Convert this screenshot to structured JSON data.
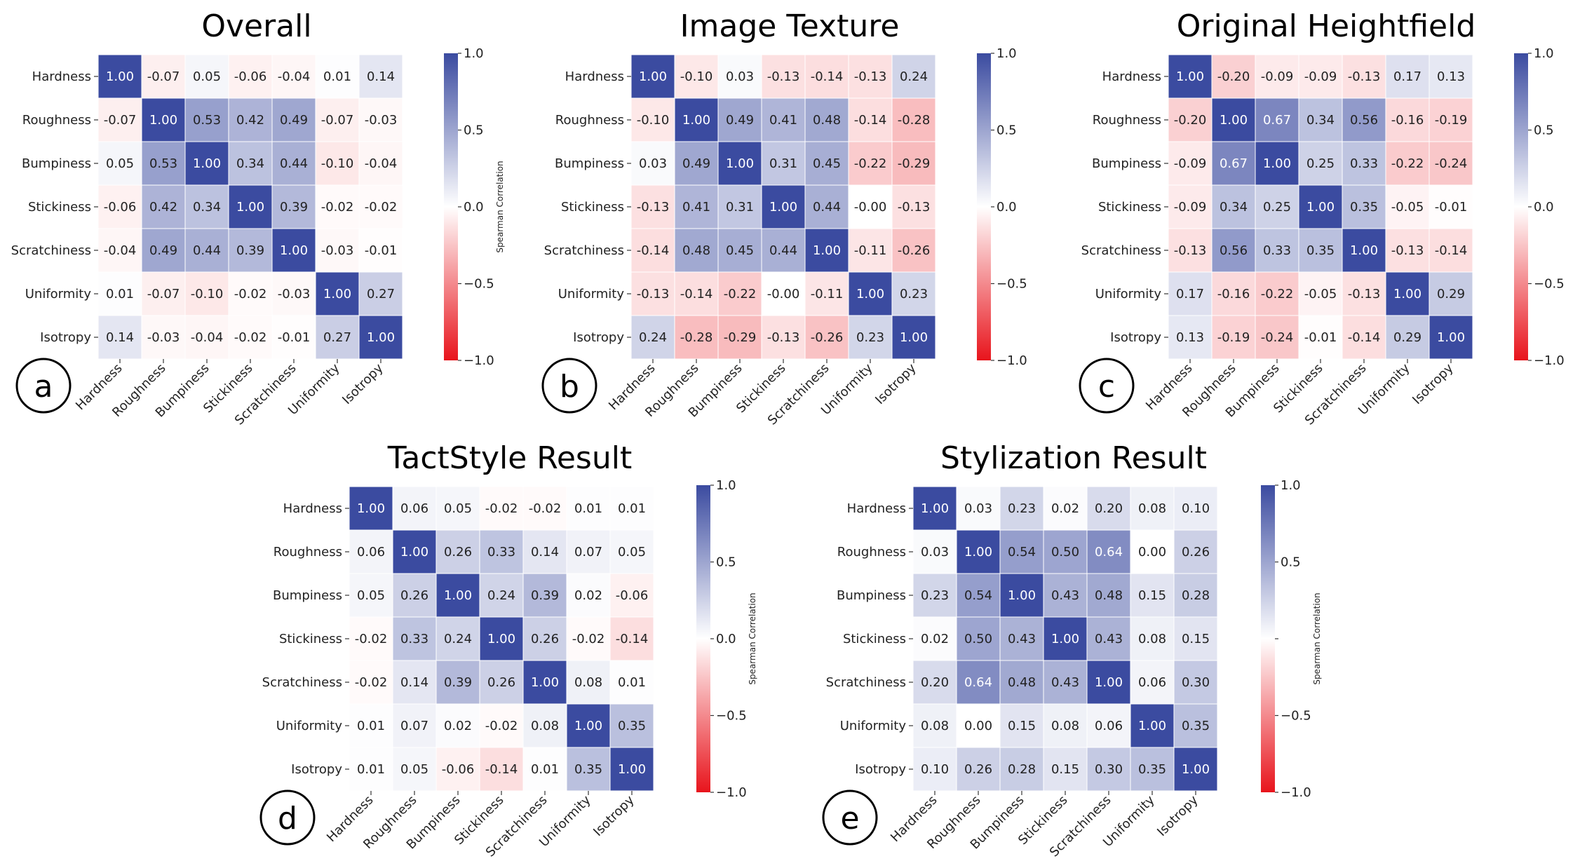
{
  "chart_data": [
    {
      "type": "heatmap",
      "title": "Overall",
      "panel_label": "a",
      "colorbar_label": "Spearman Correlation",
      "colorbar_ticks": [
        "1.0",
        "0.5",
        "0.0",
        "−0.5",
        "−1.0"
      ],
      "vmin": -1.0,
      "vmax": 1.0,
      "rows": [
        "Hardness",
        "Roughness",
        "Bumpiness",
        "Stickiness",
        "Scratchiness",
        "Uniformity",
        "Isotropy"
      ],
      "cols": [
        "Hardness",
        "Roughness",
        "Bumpiness",
        "Stickiness",
        "Scratchiness",
        "Uniformity",
        "Isotropy"
      ],
      "values": [
        [
          1.0,
          -0.07,
          0.05,
          -0.06,
          -0.04,
          0.01,
          0.14
        ],
        [
          -0.07,
          1.0,
          0.53,
          0.42,
          0.49,
          -0.07,
          -0.03
        ],
        [
          0.05,
          0.53,
          1.0,
          0.34,
          0.44,
          -0.1,
          -0.04
        ],
        [
          -0.06,
          0.42,
          0.34,
          1.0,
          0.39,
          -0.02,
          -0.02
        ],
        [
          -0.04,
          0.49,
          0.44,
          0.39,
          1.0,
          -0.03,
          -0.01
        ],
        [
          0.01,
          -0.07,
          -0.1,
          -0.02,
          -0.03,
          1.0,
          0.27
        ],
        [
          0.14,
          -0.03,
          -0.04,
          -0.02,
          -0.01,
          0.27,
          1.0
        ]
      ]
    },
    {
      "type": "heatmap",
      "title": "Image Texture",
      "panel_label": "b",
      "colorbar_label": "",
      "colorbar_ticks": [
        "1.0",
        "0.5",
        "0.0",
        "−0.5",
        "−1.0"
      ],
      "vmin": -1.0,
      "vmax": 1.0,
      "rows": [
        "Hardness",
        "Roughness",
        "Bumpiness",
        "Stickiness",
        "Scratchiness",
        "Uniformity",
        "Isotropy"
      ],
      "cols": [
        "Hardness",
        "Roughness",
        "Bumpiness",
        "Stickiness",
        "Scratchiness",
        "Uniformity",
        "Isotropy"
      ],
      "values": [
        [
          1.0,
          -0.1,
          0.03,
          -0.13,
          -0.14,
          -0.13,
          0.24
        ],
        [
          -0.1,
          1.0,
          0.49,
          0.41,
          0.48,
          -0.14,
          -0.28
        ],
        [
          0.03,
          0.49,
          1.0,
          0.31,
          0.45,
          -0.22,
          -0.29
        ],
        [
          -0.13,
          0.41,
          0.31,
          1.0,
          0.44,
          -0.0,
          -0.13
        ],
        [
          -0.14,
          0.48,
          0.45,
          0.44,
          1.0,
          -0.11,
          -0.26
        ],
        [
          -0.13,
          -0.14,
          -0.22,
          -0.0,
          -0.11,
          1.0,
          0.23
        ],
        [
          0.24,
          -0.28,
          -0.29,
          -0.13,
          -0.26,
          0.23,
          1.0
        ]
      ]
    },
    {
      "type": "heatmap",
      "title": "Original Heightfield",
      "panel_label": "c",
      "colorbar_label": "",
      "colorbar_ticks": [
        "1.0",
        "0.5",
        "0.0",
        "−0.5",
        "−1.0"
      ],
      "vmin": -1.0,
      "vmax": 1.0,
      "rows": [
        "Hardness",
        "Roughness",
        "Bumpiness",
        "Stickiness",
        "Scratchiness",
        "Uniformity",
        "Isotropy"
      ],
      "cols": [
        "Hardness",
        "Roughness",
        "Bumpiness",
        "Stickiness",
        "Scratchiness",
        "Uniformity",
        "Isotropy"
      ],
      "values": [
        [
          1.0,
          -0.2,
          -0.09,
          -0.09,
          -0.13,
          0.17,
          0.13
        ],
        [
          -0.2,
          1.0,
          0.67,
          0.34,
          0.56,
          -0.16,
          -0.19
        ],
        [
          -0.09,
          0.67,
          1.0,
          0.25,
          0.33,
          -0.22,
          -0.24
        ],
        [
          -0.09,
          0.34,
          0.25,
          1.0,
          0.35,
          -0.05,
          -0.01
        ],
        [
          -0.13,
          0.56,
          0.33,
          0.35,
          1.0,
          -0.13,
          -0.14
        ],
        [
          0.17,
          -0.16,
          -0.22,
          -0.05,
          -0.13,
          1.0,
          0.29
        ],
        [
          0.13,
          -0.19,
          -0.24,
          -0.01,
          -0.14,
          0.29,
          1.0
        ]
      ]
    },
    {
      "type": "heatmap",
      "title": "TactStyle Result",
      "panel_label": "d",
      "colorbar_label": "Spearman Correlation",
      "colorbar_ticks": [
        "1.0",
        "0.5",
        "0.0",
        "−0.5",
        "−1.0"
      ],
      "vmin": -1.0,
      "vmax": 1.0,
      "rows": [
        "Hardness",
        "Roughness",
        "Bumpiness",
        "Stickiness",
        "Scratchiness",
        "Uniformity",
        "Isotropy"
      ],
      "cols": [
        "Hardness",
        "Roughness",
        "Bumpiness",
        "Stickiness",
        "Scratchiness",
        "Uniformity",
        "Isotropy"
      ],
      "values": [
        [
          1.0,
          0.06,
          0.05,
          -0.02,
          -0.02,
          0.01,
          0.01
        ],
        [
          0.06,
          1.0,
          0.26,
          0.33,
          0.14,
          0.07,
          0.05
        ],
        [
          0.05,
          0.26,
          1.0,
          0.24,
          0.39,
          0.02,
          -0.06
        ],
        [
          -0.02,
          0.33,
          0.24,
          1.0,
          0.26,
          -0.02,
          -0.14
        ],
        [
          -0.02,
          0.14,
          0.39,
          0.26,
          1.0,
          0.08,
          0.01
        ],
        [
          0.01,
          0.07,
          0.02,
          -0.02,
          0.08,
          1.0,
          0.35
        ],
        [
          0.01,
          0.05,
          -0.06,
          -0.14,
          0.01,
          0.35,
          1.0
        ]
      ]
    },
    {
      "type": "heatmap",
      "title": "Stylization Result",
      "panel_label": "e",
      "colorbar_label": "Spearman Correlation",
      "colorbar_ticks": [
        "1.0",
        "0.5",
        "",
        "−0.5",
        "−1.0"
      ],
      "vmin": -1.0,
      "vmax": 1.0,
      "rows": [
        "Hardness",
        "Roughness",
        "Bumpiness",
        "Stickiness",
        "Scratchiness",
        "Uniformity",
        "Isotropy"
      ],
      "cols": [
        "Hardness",
        "Roughness",
        "Bumpiness",
        "Stickiness",
        "Scratchiness",
        "Uniformity",
        "Isotropy"
      ],
      "values": [
        [
          1.0,
          0.03,
          0.23,
          0.02,
          0.2,
          0.08,
          0.1
        ],
        [
          0.03,
          1.0,
          0.54,
          0.5,
          0.64,
          0.0,
          0.26
        ],
        [
          0.23,
          0.54,
          1.0,
          0.43,
          0.48,
          0.15,
          0.28
        ],
        [
          0.02,
          0.5,
          0.43,
          1.0,
          0.43,
          0.08,
          0.15
        ],
        [
          0.2,
          0.64,
          0.48,
          0.43,
          1.0,
          0.06,
          0.3
        ],
        [
          0.08,
          0.0,
          0.15,
          0.08,
          0.06,
          1.0,
          0.35
        ],
        [
          0.1,
          0.26,
          0.28,
          0.15,
          0.3,
          0.35,
          1.0
        ]
      ]
    }
  ],
  "colors": {
    "positive": "#3b4ba0",
    "neutral": "#ffffff",
    "negative": "#e8141c"
  }
}
